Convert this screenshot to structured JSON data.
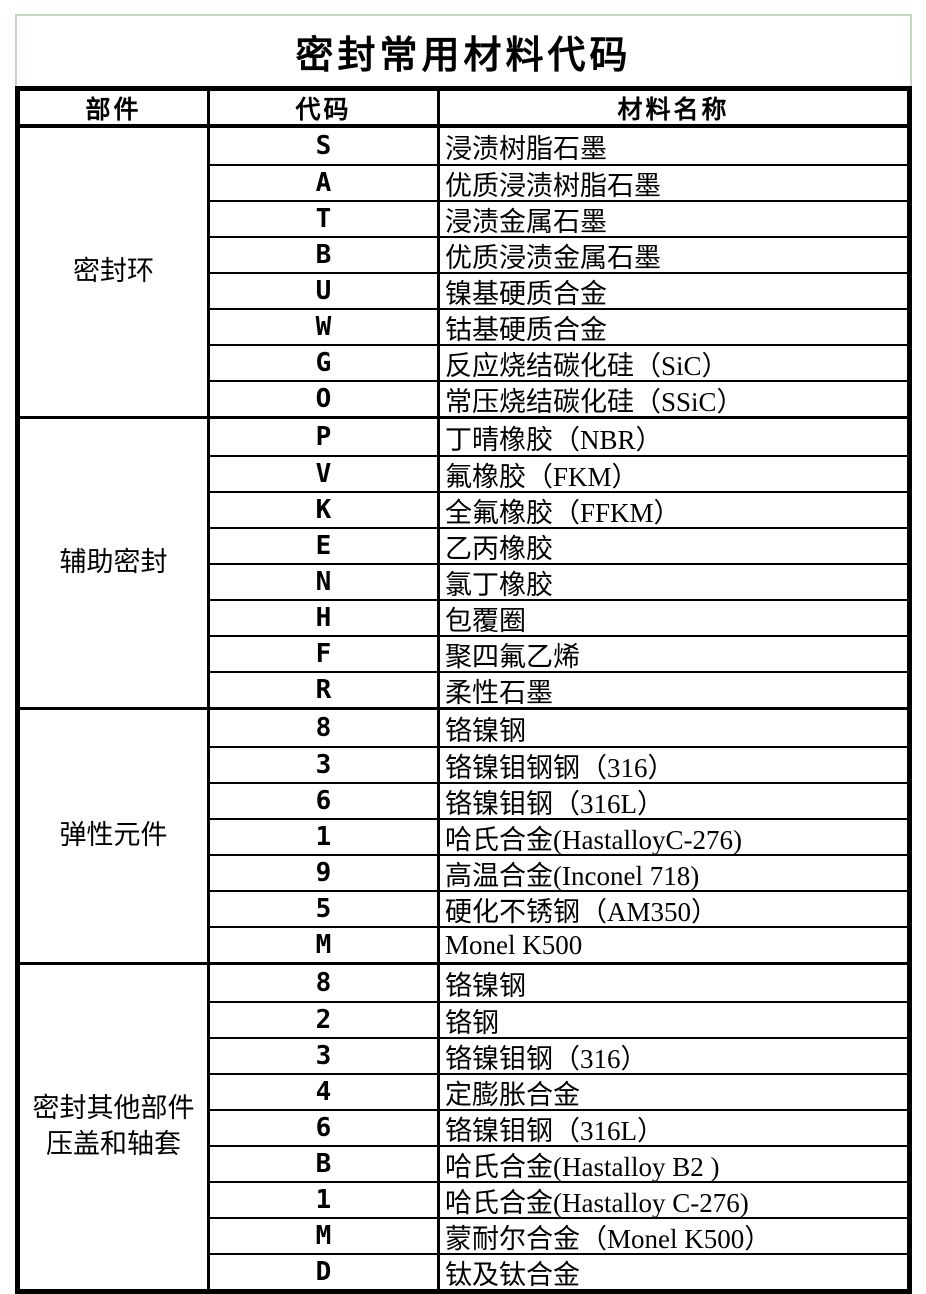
{
  "page": {
    "title": "密封常用材料代码"
  },
  "colors": {
    "title_border_green": "#c6d5c6",
    "grid_line_black": "#000000",
    "background_white": "#ffffff",
    "text_black": "#000000"
  },
  "table": {
    "headers": [
      "部件",
      "代码",
      "材料名称"
    ],
    "sections": [
      {
        "part_lines": [
          "密封环"
        ],
        "rows": [
          {
            "code": "S",
            "name": "浸渍树脂石墨"
          },
          {
            "code": "A",
            "name": "优质浸渍树脂石墨"
          },
          {
            "code": "T",
            "name": "浸渍金属石墨"
          },
          {
            "code": "B",
            "name": "优质浸渍金属石墨"
          },
          {
            "code": "U",
            "name": "镍基硬质合金"
          },
          {
            "code": "W",
            "name": "钴基硬质合金"
          },
          {
            "code": "G",
            "name": "反应烧结碳化硅（SiC）"
          },
          {
            "code": "O",
            "name": "常压烧结碳化硅（SSiC）"
          }
        ]
      },
      {
        "part_lines": [
          "辅助密封"
        ],
        "rows": [
          {
            "code": "P",
            "name": "丁晴橡胶（NBR）"
          },
          {
            "code": "V",
            "name": "氟橡胶（FKM）"
          },
          {
            "code": "K",
            "name": "全氟橡胶（FFKM）"
          },
          {
            "code": "E",
            "name": "乙丙橡胶"
          },
          {
            "code": "N",
            "name": "氯丁橡胶"
          },
          {
            "code": "H",
            "name": "包覆圈"
          },
          {
            "code": "F",
            "name": "聚四氟乙烯"
          },
          {
            "code": "R",
            "name": "柔性石墨"
          }
        ]
      },
      {
        "part_lines": [
          "弹性元件"
        ],
        "rows": [
          {
            "code": "8",
            "name": "铬镍钢"
          },
          {
            "code": "3",
            "name": "铬镍钼钢钢（316）"
          },
          {
            "code": "6",
            "name": "铬镍钼钢（316L）"
          },
          {
            "code": "1",
            "name": "哈氏合金(HastalloyC-276)"
          },
          {
            "code": "9",
            "name": "高温合金(Inconel 718)"
          },
          {
            "code": "5",
            "name": "硬化不锈钢（AM350）"
          },
          {
            "code": "M",
            "name": "Monel K500"
          }
        ]
      },
      {
        "part_lines": [
          "密封其他部件",
          "压盖和轴套"
        ],
        "rows": [
          {
            "code": "8",
            "name": "铬镍钢"
          },
          {
            "code": "2",
            "name": "铬钢"
          },
          {
            "code": "3",
            "name": "铬镍钼钢（316）"
          },
          {
            "code": "4",
            "name": "定膨胀合金"
          },
          {
            "code": "6",
            "name": "铬镍钼钢（316L）"
          },
          {
            "code": "B",
            "name": "哈氏合金(Hastalloy B2 )"
          },
          {
            "code": "1",
            "name": "哈氏合金(Hastalloy C-276)"
          },
          {
            "code": "M",
            "name": "蒙耐尔合金（Monel K500）"
          },
          {
            "code": "D",
            "name": "钛及钛合金"
          }
        ]
      }
    ]
  }
}
